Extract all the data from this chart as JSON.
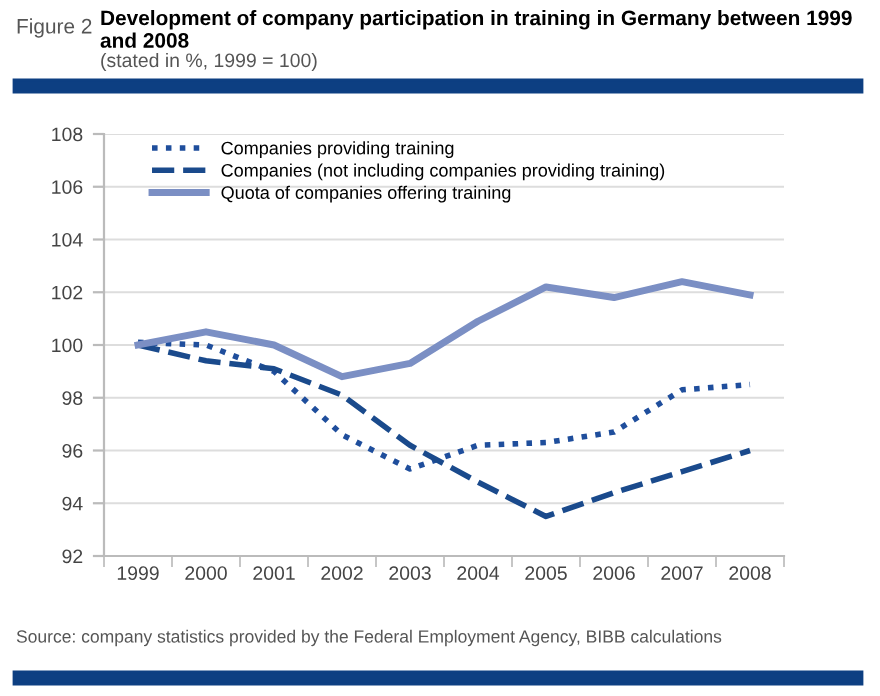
{
  "chart_data": {
    "type": "line",
    "title": "Development of company participation in training in Germany between 1999 and 2008",
    "subtitle": "(stated in %, 1999 = 100)",
    "annotations": [
      "Figure 2",
      "Source: company statistics provided by the Federal Employment Agency, BIBB calculations"
    ],
    "categories": [
      "1999",
      "2000",
      "2001",
      "2002",
      "2003",
      "2004",
      "2005",
      "2006",
      "2007",
      "2008"
    ],
    "series": [
      {
        "name": "Companies providing training",
        "color": "#1f4e9c",
        "line_style": "dotted",
        "values": [
          100.1,
          100.0,
          99.0,
          96.6,
          95.3,
          96.2,
          96.3,
          96.7,
          98.3,
          98.5
        ]
      },
      {
        "name": "Companies (not including companies providing training)",
        "color": "#1a4a8c",
        "line_style": "dashed",
        "values": [
          100.0,
          99.4,
          99.1,
          98.1,
          96.2,
          94.8,
          93.5,
          94.4,
          95.2,
          96.0
        ]
      },
      {
        "name": "Quota of companies offering training",
        "color": "#7b8fc4",
        "line_style": "solid",
        "values": [
          100.0,
          100.5,
          100.0,
          98.8,
          99.3,
          100.9,
          102.2,
          101.8,
          102.4,
          101.9
        ]
      }
    ],
    "ylim": [
      92,
      108
    ],
    "yticks": [
      92,
      94,
      96,
      98,
      100,
      102,
      104,
      106,
      108
    ],
    "grid": "y",
    "legend": "top left"
  }
}
